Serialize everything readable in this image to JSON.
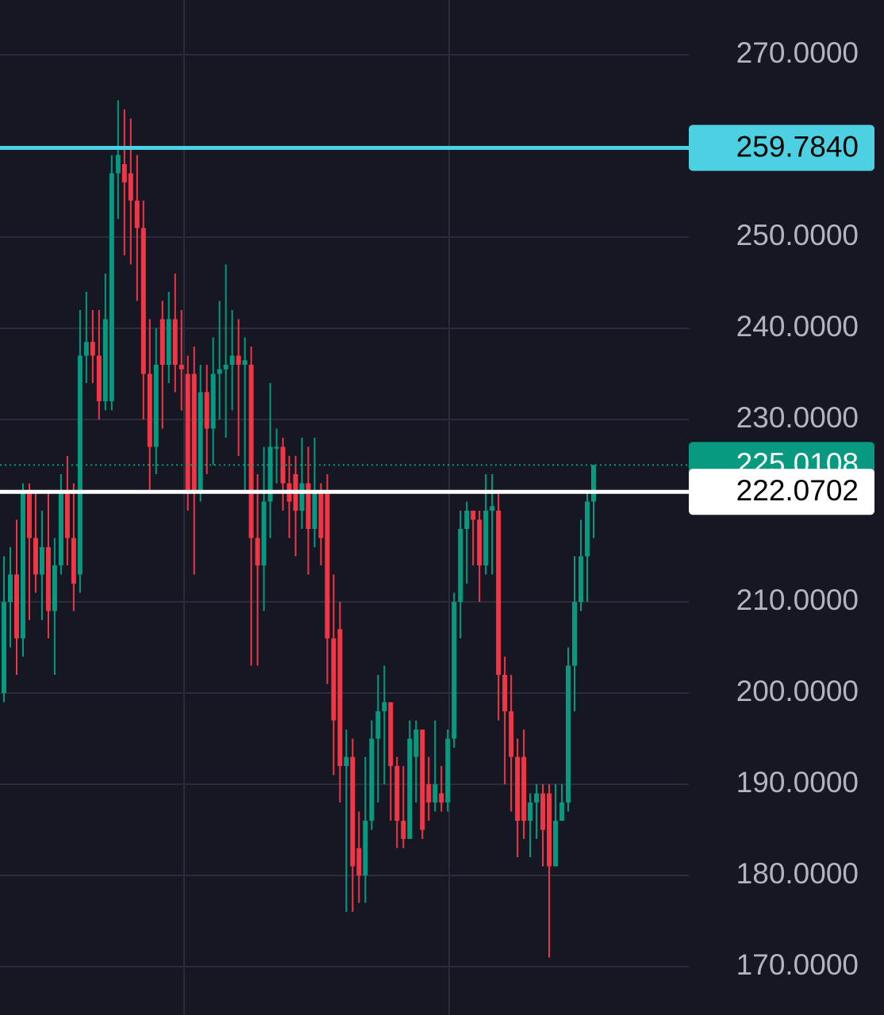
{
  "chart_data": {
    "type": "candlestick",
    "ylim": [
      164.7,
      276
    ],
    "yticks": [
      {
        "value": 270,
        "label": "270.0000"
      },
      {
        "value": 250,
        "label": "250.0000"
      },
      {
        "value": 240,
        "label": "240.0000"
      },
      {
        "value": 230,
        "label": "230.0000"
      },
      {
        "value": 210,
        "label": "210.0000"
      },
      {
        "value": 200,
        "label": "200.0000"
      },
      {
        "value": 190,
        "label": "190.0000"
      },
      {
        "value": 180,
        "label": "180.0000"
      },
      {
        "value": 170,
        "label": "170.0000"
      }
    ],
    "grid": true,
    "up_color": "#089981",
    "down_color": "#f23645",
    "open": [
      200,
      210,
      213,
      206,
      222,
      217,
      213,
      216,
      209,
      214,
      222,
      217,
      213,
      237,
      238.5,
      237,
      232,
      232,
      257,
      258,
      257,
      254,
      251,
      235,
      227,
      241,
      236,
      241,
      236,
      235,
      235,
      222,
      233,
      229,
      235,
      235.5,
      236,
      237,
      236,
      236,
      217,
      214,
      221,
      226.8,
      227,
      223,
      224,
      220,
      223,
      218,
      222,
      222,
      206,
      207,
      192,
      193,
      183,
      180,
      186,
      195,
      198,
      199,
      192,
      186,
      184,
      193,
      196,
      190,
      188,
      189,
      188,
      195,
      210,
      218,
      220,
      219,
      214,
      220,
      220,
      202,
      198,
      193,
      193,
      186,
      188,
      189,
      189,
      181,
      186,
      188,
      203,
      210,
      215,
      221
    ],
    "high": [
      215,
      216,
      219,
      223,
      223,
      222,
      220,
      222,
      217,
      224,
      226,
      223,
      242,
      244,
      242,
      242,
      246,
      259,
      265,
      264,
      263,
      259,
      254,
      241,
      240,
      243,
      244,
      246,
      242,
      237,
      238,
      236,
      236,
      239,
      243,
      247,
      242,
      241,
      239,
      238,
      224,
      227,
      234,
      229,
      228,
      226,
      226,
      228,
      227,
      228,
      223,
      224,
      213,
      210,
      196,
      195,
      187,
      193,
      197,
      202,
      203,
      199,
      193,
      192,
      197,
      197,
      196,
      193,
      197,
      192,
      196,
      211,
      220,
      221,
      220,
      220,
      224,
      224,
      222,
      204,
      202,
      195,
      196,
      189,
      190,
      190,
      190,
      190,
      190,
      205,
      215,
      219,
      222,
      225.0108
    ],
    "low": [
      199,
      205,
      202,
      204,
      208,
      211,
      208,
      206,
      202,
      213,
      214,
      209,
      211,
      234,
      234,
      230,
      231,
      231,
      252,
      248,
      247,
      243,
      230,
      222,
      224,
      229,
      234,
      233,
      231,
      220,
      213,
      221,
      224,
      225,
      230,
      228,
      231,
      226,
      222,
      203,
      203,
      209,
      217,
      223,
      220,
      217,
      215,
      218,
      213,
      216,
      214,
      201,
      191,
      188,
      176,
      176,
      177,
      177,
      185,
      188,
      190,
      186,
      183,
      183,
      184,
      188,
      184,
      186,
      187,
      187,
      187,
      194,
      206,
      212,
      214,
      210,
      213,
      213,
      197,
      190,
      187,
      182,
      184,
      182,
      184,
      181,
      171,
      182,
      186,
      187,
      198,
      209,
      210,
      217
    ],
    "close": [
      210,
      213,
      206,
      222,
      217,
      213,
      216,
      209,
      214,
      222,
      217,
      212,
      237,
      238.5,
      237,
      232,
      241,
      257,
      259,
      256,
      254,
      251,
      235,
      227,
      236,
      236,
      241,
      236,
      235.5,
      222,
      222,
      233,
      229,
      235,
      235.5,
      236,
      237,
      236,
      236.5,
      217,
      214,
      221,
      227,
      227,
      223,
      221,
      220,
      223,
      218,
      222,
      217,
      206,
      197,
      192,
      193,
      181,
      180,
      186,
      195,
      198,
      199,
      192,
      186,
      184,
      195,
      196,
      185,
      188,
      190,
      188,
      195,
      210,
      218,
      220,
      219,
      214,
      220,
      220.5,
      202,
      198,
      193,
      186,
      186,
      188,
      189,
      185,
      181,
      186,
      188,
      203,
      210,
      215,
      221,
      225.0108
    ],
    "lines": [
      {
        "value": 259.784,
        "label": "259.7840",
        "color": "#4dd0e1",
        "text_color": "#000000",
        "style": "solid"
      },
      {
        "value": 225.0108,
        "label": "225.0108",
        "color": "#089981",
        "text_color": "#ffffff",
        "style": "dotted"
      },
      {
        "value": 222.0702,
        "label": "222.0702",
        "color": "#ffffff",
        "text_color": "#000000",
        "style": "solid"
      }
    ]
  }
}
